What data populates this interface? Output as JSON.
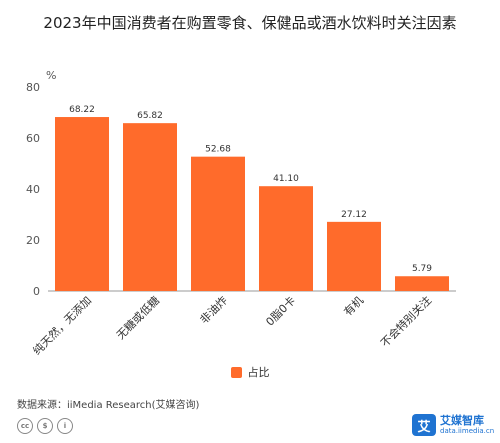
{
  "chart_data": {
    "type": "bar",
    "title": "2023年中国消费者在购置零食、保健品或酒水饮料时关注因素",
    "y_unit": "%",
    "ylim": [
      0,
      80
    ],
    "yticks": [
      0,
      20,
      40,
      60,
      80
    ],
    "categories": [
      "纯天然，无添加",
      "无糖或低糖",
      "非油炸",
      "0脂0卡",
      "有机",
      "不会特别关注"
    ],
    "series": [
      {
        "name": "占比",
        "values": [
          68.22,
          65.82,
          52.68,
          41.1,
          27.12,
          5.79
        ]
      }
    ],
    "value_labels": [
      "68.22",
      "65.82",
      "52.68",
      "41.10",
      "27.12",
      "5.79"
    ],
    "grid": false,
    "legend_position": "bottom-center"
  },
  "colors": {
    "bar": "#ff6b2b",
    "axis": "#999999"
  },
  "source": "数据来源：iiMedia Research(艾媒咨询)",
  "license_icons": [
    "cc-icon",
    "by-icon",
    "person-icon"
  ],
  "license_glyphs": [
    "cc",
    "$",
    "i"
  ],
  "brand": {
    "name": "艾媒智库",
    "url": "data.iimedia.cn",
    "logo_char": "艾"
  }
}
